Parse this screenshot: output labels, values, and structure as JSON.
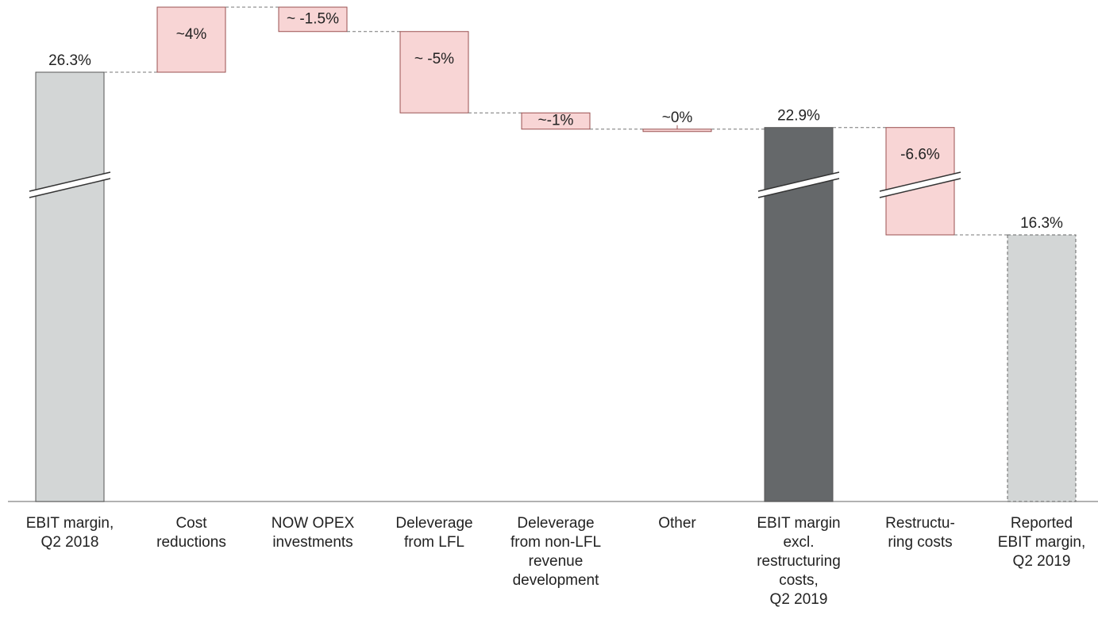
{
  "chart_data": {
    "type": "waterfall",
    "categories": [
      "EBIT margin,\nQ2 2018",
      "Cost\nreductions",
      "NOW OPEX\ninvestments",
      "Deleverage\nfrom LFL",
      "Deleverage\nfrom non-LFL\nrevenue\ndevelopment",
      "Other",
      "EBIT margin\nexcl.\nrestructuring\ncosts,\nQ2 2019",
      "Restructu-\nring costs",
      "Reported\nEBIT margin,\nQ2 2019"
    ],
    "values": [
      26.3,
      4,
      -1.5,
      -5,
      -1,
      0,
      22.9,
      -6.6,
      16.3
    ],
    "value_labels": [
      "26.3%",
      "~4%",
      "~ -1.5%",
      "~ -5%",
      "~-1%",
      "~0%",
      "22.9%",
      "-6.6%",
      "16.3%"
    ],
    "kinds": [
      "total",
      "delta",
      "delta",
      "delta",
      "delta",
      "delta",
      "total",
      "delta",
      "total"
    ],
    "colors": [
      "#d3d6d6",
      "#f8d5d5",
      "#f8d5d5",
      "#f8d5d5",
      "#f8d5d5",
      "#f8d5d5",
      "#65686a",
      "#f8d5d5",
      "#d3d6d6"
    ],
    "axis_break": true
  }
}
